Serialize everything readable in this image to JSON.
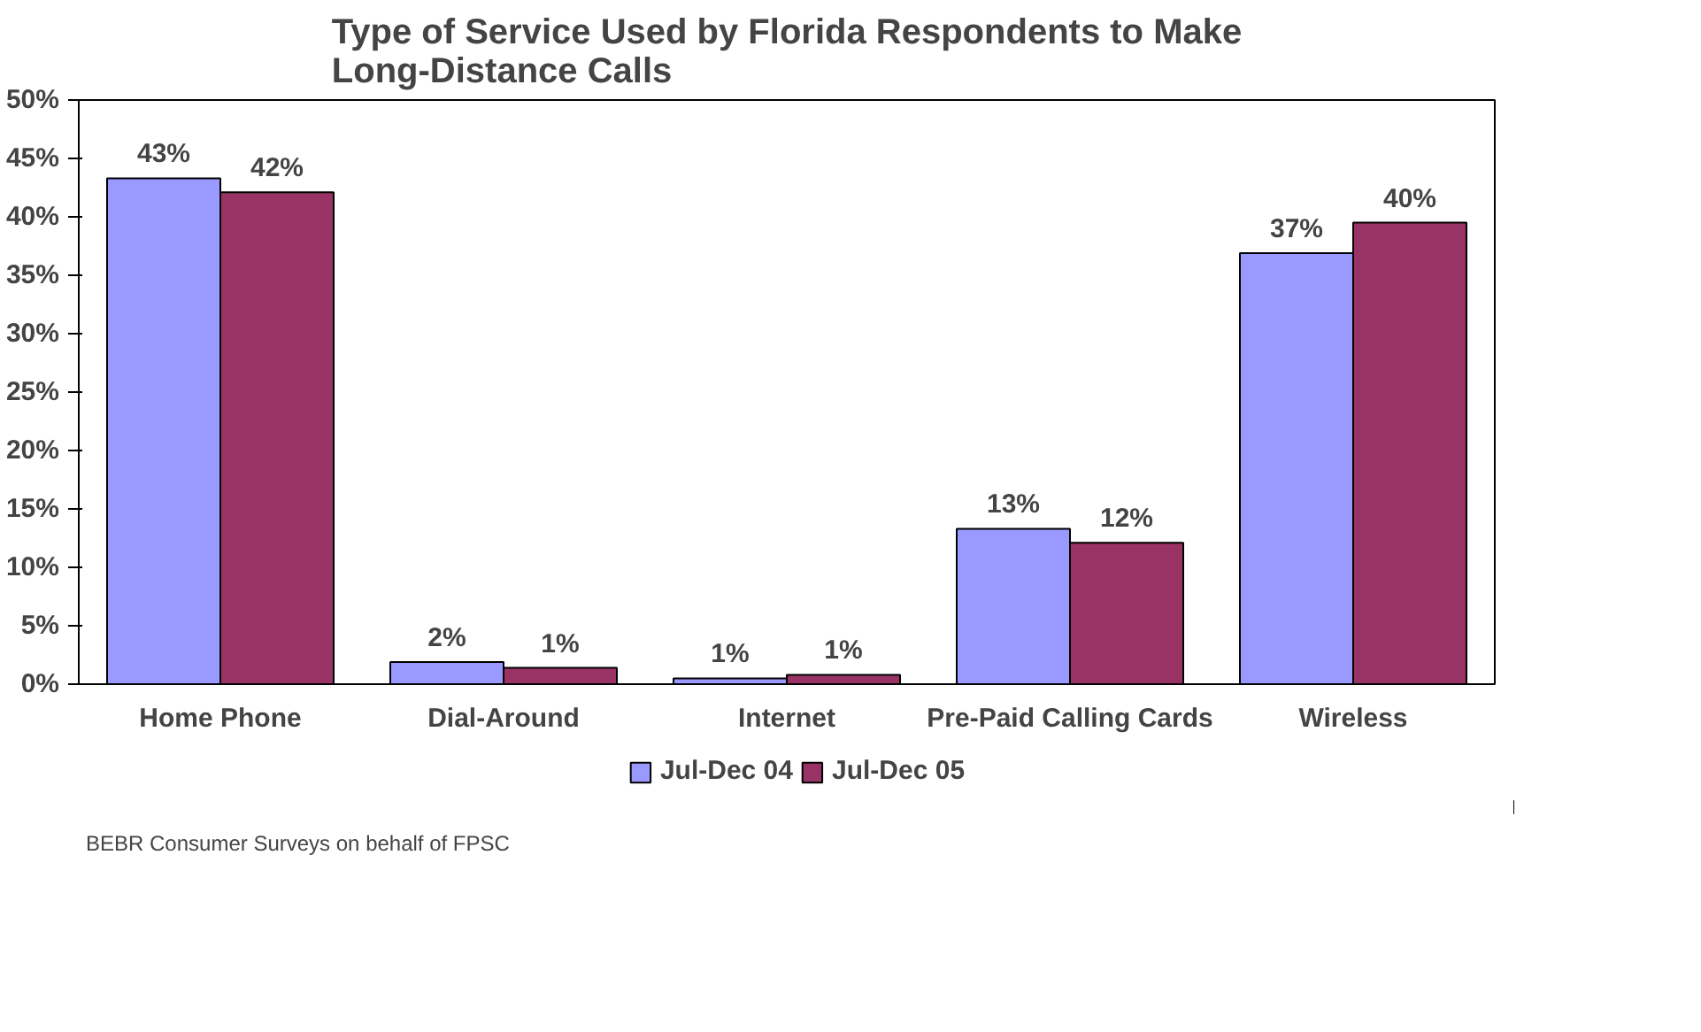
{
  "chart_data": {
    "type": "bar",
    "title": "Type of Service Used by Florida Respondents to Make\nLong-Distance Calls",
    "categories": [
      "Home Phone",
      "Dial-Around",
      "Internet",
      "Pre-Paid Calling Cards",
      "Wireless"
    ],
    "series": [
      {
        "name": "Jul-Dec 04",
        "color": "#9999ff",
        "values": [
          43.3,
          1.9,
          0.5,
          13.3,
          36.9
        ],
        "value_labels": [
          "43%",
          "2%",
          "1%",
          "13%",
          "37%"
        ]
      },
      {
        "name": "Jul-Dec 05",
        "color": "#993366",
        "values": [
          42.1,
          1.4,
          0.8,
          12.1,
          39.5
        ],
        "value_labels": [
          "42%",
          "1%",
          "1%",
          "12%",
          "40%"
        ]
      }
    ],
    "ylim": [
      0,
      50
    ],
    "yticks": [
      {
        "value": 0,
        "label": "0%"
      },
      {
        "value": 5,
        "label": "5%"
      },
      {
        "value": 10,
        "label": "10%"
      },
      {
        "value": 15,
        "label": "15%"
      },
      {
        "value": 20,
        "label": "20%"
      },
      {
        "value": 25,
        "label": "25%"
      },
      {
        "value": 30,
        "label": "30%"
      },
      {
        "value": 35,
        "label": "35%"
      },
      {
        "value": 40,
        "label": "40%"
      },
      {
        "value": 45,
        "label": "45%"
      },
      {
        "value": 50,
        "label": "50%"
      }
    ],
    "grid": false,
    "legend": "bottom",
    "annotations": [
      "BEBR Consumer Surveys on behalf of FPSC"
    ]
  }
}
